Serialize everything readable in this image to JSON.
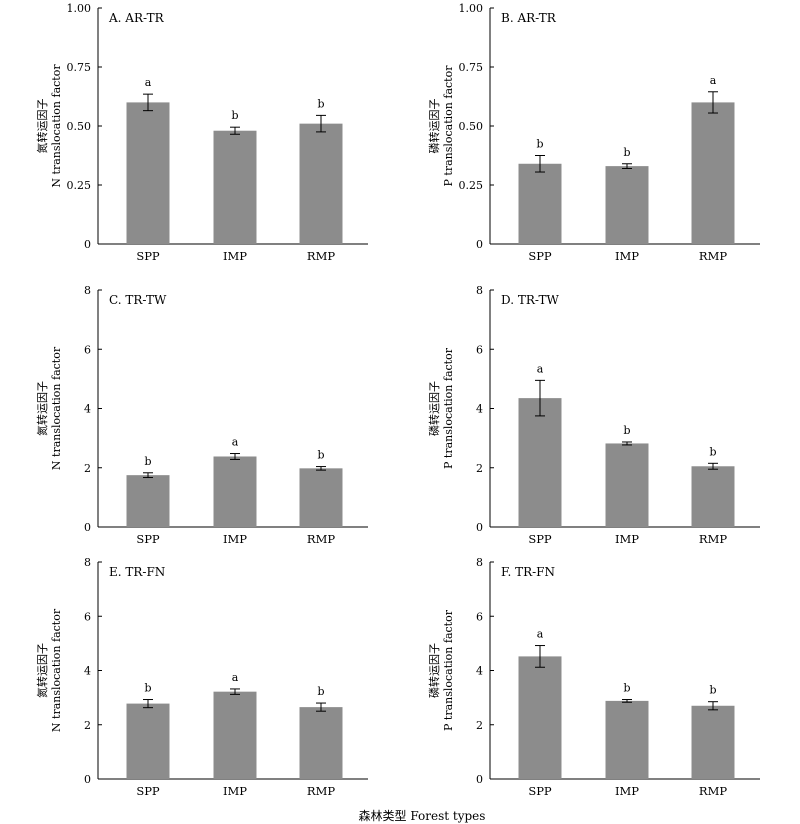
{
  "x_title": "森林类型 Forest types",
  "colors": {
    "bar": "#8c8c8c",
    "axis": "#000000"
  },
  "chart_data": [
    {
      "type": "bar",
      "title": "A. AR-TR",
      "ylabel_cn": "氮转运因子",
      "ylabel_en": "N translocation factor",
      "categories": [
        "SPP",
        "IMP",
        "RMP"
      ],
      "values": [
        0.6,
        0.48,
        0.51
      ],
      "errors": [
        0.035,
        0.015,
        0.035
      ],
      "letters": [
        "a",
        "b",
        "b"
      ],
      "ylim": [
        0,
        1.0
      ],
      "yticks": [
        "0",
        "0.25",
        "0.50",
        "0.75",
        "1.00"
      ],
      "grid": false
    },
    {
      "type": "bar",
      "title": "B. AR-TR",
      "ylabel_cn": "磷转运因子",
      "ylabel_en": "P translocation factor",
      "categories": [
        "SPP",
        "IMP",
        "RMP"
      ],
      "values": [
        0.34,
        0.33,
        0.6
      ],
      "errors": [
        0.035,
        0.01,
        0.045
      ],
      "letters": [
        "b",
        "b",
        "a"
      ],
      "ylim": [
        0,
        1.0
      ],
      "yticks": [
        "0",
        "0.25",
        "0.50",
        "0.75",
        "1.00"
      ],
      "grid": false
    },
    {
      "type": "bar",
      "title": "C. TR-TW",
      "ylabel_cn": "氮转运因子",
      "ylabel_en": "N translocation factor",
      "categories": [
        "SPP",
        "IMP",
        "RMP"
      ],
      "values": [
        1.75,
        2.38,
        1.98
      ],
      "errors": [
        0.08,
        0.1,
        0.06
      ],
      "letters": [
        "b",
        "a",
        "b"
      ],
      "ylim": [
        0,
        8
      ],
      "yticks": [
        "0",
        "2",
        "4",
        "6",
        "8"
      ],
      "grid": false
    },
    {
      "type": "bar",
      "title": "D. TR-TW",
      "ylabel_cn": "磷转运因子",
      "ylabel_en": "P translocation factor",
      "categories": [
        "SPP",
        "IMP",
        "RMP"
      ],
      "values": [
        4.35,
        2.82,
        2.05
      ],
      "errors": [
        0.6,
        0.05,
        0.1
      ],
      "letters": [
        "a",
        "b",
        "b"
      ],
      "ylim": [
        0,
        8
      ],
      "yticks": [
        "0",
        "2",
        "4",
        "6",
        "8"
      ],
      "grid": false
    },
    {
      "type": "bar",
      "title": "E. TR-FN",
      "ylabel_cn": "氮转运因子",
      "ylabel_en": "N translocation factor",
      "categories": [
        "SPP",
        "IMP",
        "RMP"
      ],
      "values": [
        2.78,
        3.22,
        2.65
      ],
      "errors": [
        0.15,
        0.1,
        0.15
      ],
      "letters": [
        "b",
        "a",
        "b"
      ],
      "ylim": [
        0,
        8
      ],
      "yticks": [
        "0",
        "2",
        "4",
        "6",
        "8"
      ],
      "grid": false
    },
    {
      "type": "bar",
      "title": "F. TR-FN",
      "ylabel_cn": "磷转运因子",
      "ylabel_en": "P translocation factor",
      "categories": [
        "SPP",
        "IMP",
        "RMP"
      ],
      "values": [
        4.52,
        2.88,
        2.7
      ],
      "errors": [
        0.4,
        0.05,
        0.15
      ],
      "letters": [
        "a",
        "b",
        "b"
      ],
      "ylim": [
        0,
        8
      ],
      "yticks": [
        "0",
        "2",
        "4",
        "6",
        "8"
      ],
      "grid": false
    }
  ]
}
